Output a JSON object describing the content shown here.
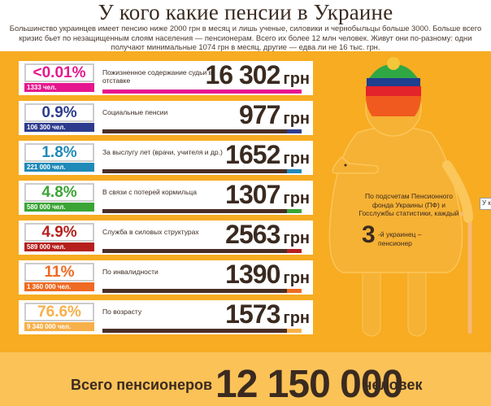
{
  "title": "У кого какие пенсии в Украине",
  "subtitle": "Большинство украинцев имеет пенсию ниже 2000 грн в месяц и лишь ученые, силовики и чернобыльцы больше 3000. Больше всего кризис бьет по незащищенным слоям населения — пенсионерам. Всего их более 12 млн человек. Живут они по-разному: одни получают минимальные 1074 грн в месяц, другие — едва ли не 16 тыс. грн.",
  "unit": "грн",
  "rows": [
    {
      "pct": "<0.01%",
      "count": "1333 чел.",
      "label": "Пожизненное содержание судьи в отставке",
      "amount": "16 302",
      "value": 16302,
      "color": "#e6178e"
    },
    {
      "pct": "0.9%",
      "count": "106 300 чел.",
      "label": "Социальные пенсии",
      "amount": "977",
      "value": 977,
      "color": "#2d3b8f"
    },
    {
      "pct": "1.8%",
      "count": "221 000 чел.",
      "label": "За выслугу лет (врачи, учителя и др.)",
      "amount": "1652",
      "value": 1652,
      "color": "#1f8ab8"
    },
    {
      "pct": "4.8%",
      "count": "580 000 чел.",
      "label": "В связи с потерей кормильца",
      "amount": "1307",
      "value": 1307,
      "color": "#3aa536"
    },
    {
      "pct": "4.9%",
      "count": "589 000 чел.",
      "label": "Служба в силовых структурах",
      "amount": "2563",
      "value": 2563,
      "color": "#b5201e"
    },
    {
      "pct": "11%",
      "count": "1 360 000 чел.",
      "label": "По инвалидности",
      "amount": "1390",
      "value": 1390,
      "color": "#ef6a23"
    },
    {
      "pct": "76.6%",
      "count": "9 340 000 чел.",
      "label": "По возрасту",
      "amount": "1573",
      "value": 1573,
      "color": "#f7b04a"
    }
  ],
  "granny": {
    "text_top": "По подсчетам Пенсионного фонда Украины (ПФ) и Госслужбы статистики, каждый",
    "big": "3",
    "text_suffix": "-й",
    "text_bottom": "украинец – пенсионер",
    "hat_colors": [
      "#7a2a7a",
      "#2fa844",
      "#1f3f8f",
      "#e4232b",
      "#f05a1e"
    ]
  },
  "tooltip": "У к",
  "footer": {
    "left": "Всего пенсионеров",
    "total": "12 150 000",
    "right": "человек"
  }
}
